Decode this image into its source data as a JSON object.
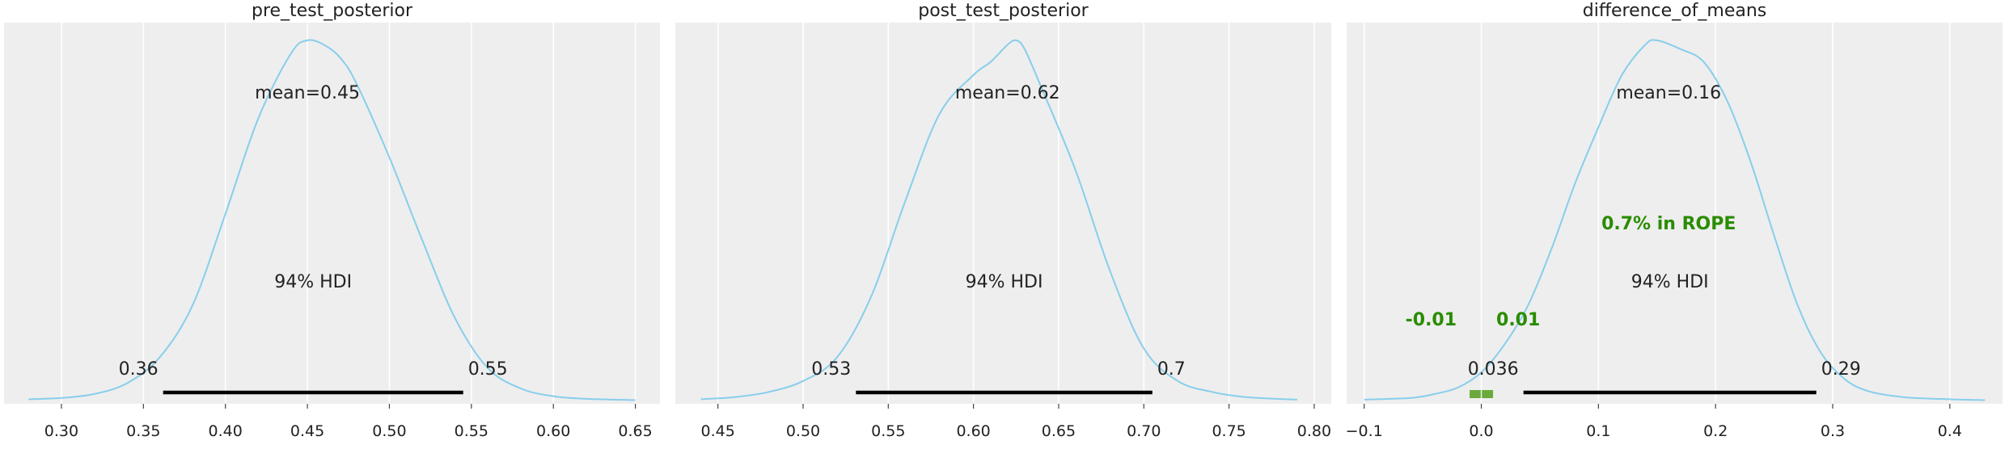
{
  "chart_data": [
    {
      "type": "area",
      "title": "pre_test_posterior",
      "xlim": [
        0.265,
        0.665
      ],
      "xticks": [
        0.3,
        0.35,
        0.4,
        0.45,
        0.5,
        0.55,
        0.6,
        0.65
      ],
      "xtick_labels": [
        "0.30",
        "0.35",
        "0.40",
        "0.45",
        "0.50",
        "0.55",
        "0.60",
        "0.65"
      ],
      "grid": true,
      "density": {
        "x": [
          0.28,
          0.3,
          0.32,
          0.34,
          0.36,
          0.38,
          0.4,
          0.42,
          0.44,
          0.45,
          0.46,
          0.47,
          0.48,
          0.5,
          0.52,
          0.54,
          0.56,
          0.58,
          0.6,
          0.62,
          0.65
        ],
        "y": [
          0.3,
          0.6,
          1.5,
          4.0,
          10.0,
          22.0,
          43.0,
          65.0,
          80.0,
          83.0,
          82.0,
          79.0,
          73.0,
          56.0,
          37.0,
          19.0,
          7.5,
          2.8,
          1.0,
          0.4,
          0.1
        ]
      },
      "point_estimate": {
        "value": 0.45,
        "label": "mean=0.45"
      },
      "hdi": {
        "label": "94% HDI",
        "low": 0.362,
        "high": 0.545,
        "low_label": "0.36",
        "high_label": "0.55"
      }
    },
    {
      "type": "area",
      "title": "post_test_posterior",
      "xlim": [
        0.425,
        0.81
      ],
      "xticks": [
        0.45,
        0.5,
        0.55,
        0.6,
        0.65,
        0.7,
        0.75,
        0.8
      ],
      "xtick_labels": [
        "0.45",
        "0.50",
        "0.55",
        "0.60",
        "0.65",
        "0.70",
        "0.75",
        "0.80"
      ],
      "grid": true,
      "density": {
        "x": [
          0.44,
          0.46,
          0.48,
          0.5,
          0.52,
          0.54,
          0.56,
          0.58,
          0.6,
          0.61,
          0.62,
          0.625,
          0.63,
          0.64,
          0.66,
          0.68,
          0.7,
          0.72,
          0.74,
          0.76,
          0.79
        ],
        "y": [
          0.3,
          0.8,
          2.0,
          4.5,
          10.0,
          24.0,
          46.0,
          66.0,
          75.0,
          78.0,
          82.0,
          83.0,
          81.0,
          72.0,
          53.0,
          30.0,
          12.0,
          4.5,
          2.0,
          0.8,
          0.2
        ]
      },
      "point_estimate": {
        "value": 0.62,
        "label": "mean=0.62"
      },
      "hdi": {
        "label": "94% HDI",
        "low": 0.531,
        "high": 0.705,
        "low_label": "0.53",
        "high_label": "0.7"
      }
    },
    {
      "type": "area",
      "title": "difference_of_means",
      "xlim": [
        -0.115,
        0.445
      ],
      "xticks": [
        -0.1,
        0.0,
        0.1,
        0.2,
        0.3,
        0.4
      ],
      "xtick_labels": [
        "−0.1",
        "0.0",
        "0.1",
        "0.2",
        "0.3",
        "0.4"
      ],
      "grid": true,
      "density": {
        "x": [
          -0.1,
          -0.06,
          -0.04,
          -0.02,
          0.0,
          0.02,
          0.04,
          0.06,
          0.08,
          0.1,
          0.12,
          0.14,
          0.15,
          0.17,
          0.19,
          0.21,
          0.23,
          0.25,
          0.27,
          0.29,
          0.31,
          0.33,
          0.36,
          0.4,
          0.43
        ],
        "y": [
          0.2,
          0.6,
          1.5,
          3.0,
          6.5,
          13.0,
          22.0,
          35.0,
          50.0,
          63.0,
          75.0,
          82.0,
          83.0,
          81.0,
          78.0,
          69.0,
          55.0,
          38.0,
          22.0,
          11.0,
          5.0,
          2.2,
          0.8,
          0.3,
          0.1
        ]
      },
      "point_estimate": {
        "value": 0.16,
        "label": "mean=0.16"
      },
      "hdi": {
        "label": "94% HDI",
        "low": 0.036,
        "high": 0.286,
        "low_label": "0.036",
        "high_label": "0.29"
      },
      "rope": {
        "low": -0.01,
        "high": 0.01,
        "low_label": "-0.01",
        "high_label": "0.01",
        "label": "0.7% in ROPE"
      }
    }
  ],
  "colors": {
    "panel_bg": "#eeeeee",
    "grid": "#ffffff",
    "density": "#87ceeb",
    "hdi": "#000000",
    "rope": "#2a8c00",
    "rope_bar": "#6aaa3a",
    "text": "#222222"
  }
}
